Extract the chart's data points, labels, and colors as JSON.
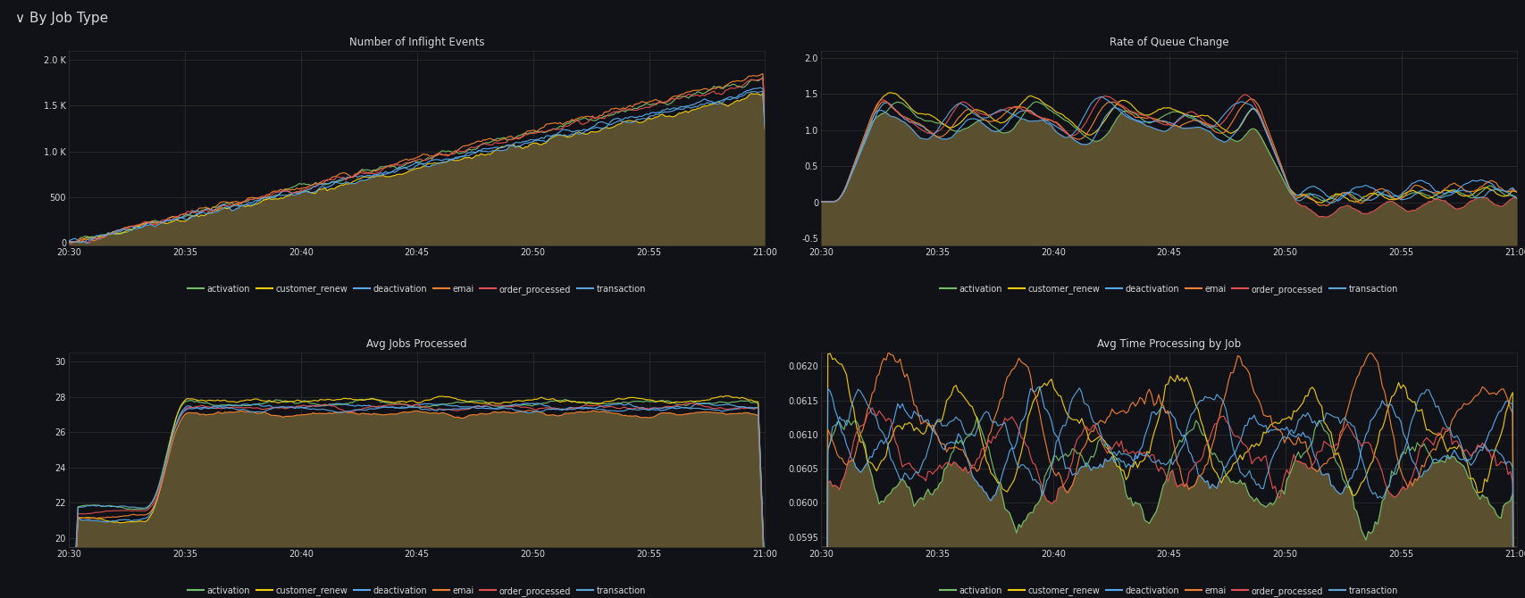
{
  "title": "✓ By Job Type",
  "background_color": "#111217",
  "plot_bg_color": "#111217",
  "fill_color": "#5a5030",
  "grid_color": "#2c2c2c",
  "text_color": "#d8d9da",
  "series_colors": {
    "activation": "#73bf69",
    "customer_renew": "#f2cc0c",
    "deactivation": "#56a9f1",
    "emai": "#f08030",
    "order_processed": "#e05050",
    "transaction": "#5ba3d9"
  },
  "x_ticks": [
    "20:30",
    "20:35",
    "20:40",
    "20:45",
    "20:50",
    "20:55",
    "21:00"
  ],
  "panels": [
    {
      "title": "Number of Inflight Events",
      "ylim": [
        -30,
        2100
      ],
      "yticks": [
        0,
        500,
        1000,
        1500,
        2000
      ],
      "ytick_labels": [
        "0",
        "500",
        "1.0 K",
        "1.5 K",
        "2.0 K"
      ],
      "row": 0,
      "col": 0
    },
    {
      "title": "Rate of Queue Change",
      "ylim": [
        -0.6,
        2.1
      ],
      "yticks": [
        -0.5,
        0,
        0.5,
        1.0,
        1.5,
        2.0
      ],
      "ytick_labels": [
        "-0.5",
        "0",
        "0.5",
        "1.0",
        "1.5",
        "2.0"
      ],
      "row": 0,
      "col": 1
    },
    {
      "title": "Avg Jobs Processed",
      "ylim": [
        19.5,
        30.5
      ],
      "yticks": [
        20,
        22,
        24,
        26,
        28,
        30
      ],
      "ytick_labels": [
        "20",
        "22",
        "24",
        "26",
        "28",
        "30"
      ],
      "row": 1,
      "col": 0
    },
    {
      "title": "Avg Time Processing by Job",
      "ylim": [
        0.05935,
        0.0622
      ],
      "yticks": [
        0.0595,
        0.06,
        0.0605,
        0.061,
        0.0615,
        0.062
      ],
      "ytick_labels": [
        "0.0595",
        "0.0600",
        "0.0605",
        "0.0610",
        "0.0615",
        "0.0620"
      ],
      "row": 1,
      "col": 1
    }
  ]
}
